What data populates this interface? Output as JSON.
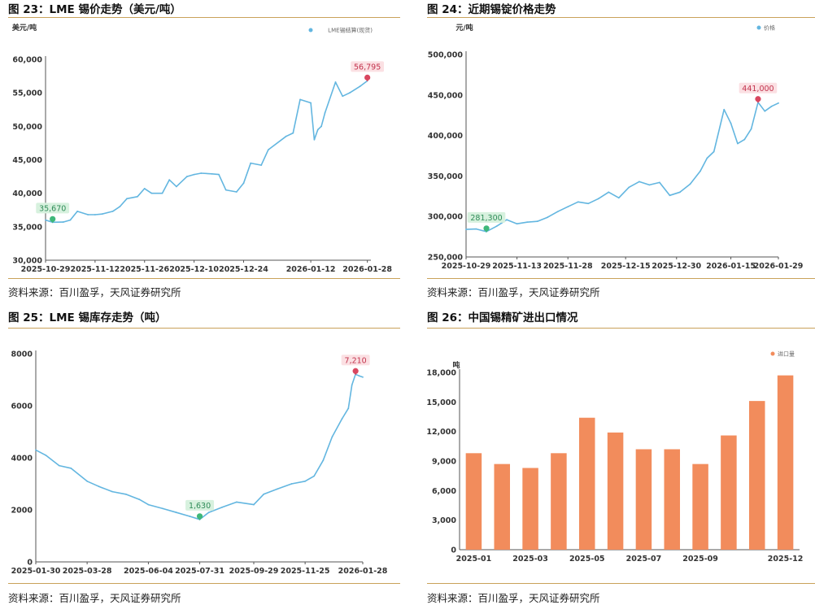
{
  "panels": [
    {
      "id": "p23",
      "title": "图 23：LME 锡价走势（美元/吨）",
      "source": "资料来源：百川盈孚，天风证券研究所",
      "chart_data": {
        "type": "line",
        "unit": "美元/吨",
        "legend": [
          "LME锡结算(现货)"
        ],
        "legend_position": "top-right",
        "color": "#63b6e0",
        "ylim": [
          30000,
          60000
        ],
        "yticks": [
          30000,
          35000,
          40000,
          45000,
          50000,
          55000,
          60000
        ],
        "ytick_labels": [
          "30,000",
          "35,000",
          "40,000",
          "45,000",
          "50,000",
          "55,000",
          "60,000"
        ],
        "xlim": [
          "2025-10-29",
          "2026-01-29"
        ],
        "xticks": [
          "2025-10-29",
          "2025-11-12",
          "2025-11-26",
          "2025-12-10",
          "2025-12-24",
          "2026-01-12",
          "2026-01-28"
        ],
        "x": [
          "2025-10-29",
          "2025-10-31",
          "2025-11-03",
          "2025-11-05",
          "2025-11-07",
          "2025-11-10",
          "2025-11-12",
          "2025-11-14",
          "2025-11-17",
          "2025-11-19",
          "2025-11-21",
          "2025-11-24",
          "2025-11-26",
          "2025-11-28",
          "2025-12-01",
          "2025-12-03",
          "2025-12-05",
          "2025-12-08",
          "2025-12-10",
          "2025-12-12",
          "2025-12-15",
          "2025-12-17",
          "2025-12-19",
          "2025-12-22",
          "2025-12-24",
          "2025-12-26",
          "2025-12-29",
          "2025-12-31",
          "2026-01-05",
          "2026-01-07",
          "2026-01-09",
          "2026-01-12",
          "2026-01-13",
          "2026-01-14",
          "2026-01-15",
          "2026-01-16",
          "2026-01-19",
          "2026-01-21",
          "2026-01-23",
          "2026-01-26",
          "2026-01-28"
        ],
        "values": [
          36000,
          35670,
          35700,
          36000,
          37300,
          36800,
          36800,
          36900,
          37300,
          38000,
          39200,
          39500,
          40700,
          40000,
          40000,
          42000,
          41000,
          42500,
          42800,
          43000,
          42900,
          42800,
          40500,
          40200,
          41500,
          44500,
          44200,
          46500,
          48500,
          49000,
          54000,
          53500,
          48000,
          49500,
          50000,
          52000,
          56600,
          54500,
          55000,
          56000,
          56795
        ],
        "min_label": {
          "x": "2025-10-31",
          "value": 35670,
          "text": "35,670"
        },
        "max_label": {
          "x": "2026-01-28",
          "value": 56795,
          "text": "56,795"
        }
      }
    },
    {
      "id": "p24",
      "title": "图 24：近期锡锭价格走势",
      "source": "资料来源：百川盈孚，天风证券研究所",
      "chart_data": {
        "type": "line",
        "unit": "元/吨",
        "legend": [
          "价格"
        ],
        "legend_position": "top-right",
        "color": "#63b6e0",
        "ylim": [
          250000,
          500000
        ],
        "yticks": [
          250000,
          300000,
          350000,
          400000,
          450000,
          500000
        ],
        "ytick_labels": [
          "250,000",
          "300,000",
          "350,000",
          "400,000",
          "450,000",
          "500,000"
        ],
        "xlim": [
          "2025-10-29",
          "2026-01-29"
        ],
        "xticks": [
          "2025-10-29",
          "2025-11-13",
          "2025-11-28",
          "2025-12-15",
          "2025-12-30",
          "2026-01-15",
          "2026-01-29"
        ],
        "x": [
          "2025-10-29",
          "2025-11-01",
          "2025-11-04",
          "2025-11-07",
          "2025-11-10",
          "2025-11-13",
          "2025-11-16",
          "2025-11-19",
          "2025-11-22",
          "2025-11-25",
          "2025-11-28",
          "2025-12-01",
          "2025-12-04",
          "2025-12-07",
          "2025-12-10",
          "2025-12-13",
          "2025-12-16",
          "2025-12-19",
          "2025-12-22",
          "2025-12-25",
          "2025-12-28",
          "2025-12-31",
          "2026-01-03",
          "2026-01-06",
          "2026-01-08",
          "2026-01-10",
          "2026-01-13",
          "2026-01-15",
          "2026-01-17",
          "2026-01-19",
          "2026-01-21",
          "2026-01-23",
          "2026-01-25",
          "2026-01-27",
          "2026-01-29"
        ],
        "values": [
          284000,
          284500,
          281300,
          288000,
          296000,
          291000,
          293000,
          294000,
          299000,
          306000,
          312000,
          318000,
          316000,
          322000,
          330000,
          323000,
          336000,
          343000,
          339000,
          342000,
          326000,
          330000,
          340000,
          356000,
          372000,
          380000,
          432000,
          415000,
          390000,
          395000,
          408000,
          441000,
          430000,
          436000,
          440000
        ],
        "min_label": {
          "x": "2025-11-04",
          "value": 281300,
          "text": "281,300"
        },
        "max_label": {
          "x": "2026-01-23",
          "value": 441000,
          "text": "441,000"
        }
      }
    },
    {
      "id": "p25",
      "title": "图 25：LME 锡库存走势（吨）",
      "source": "资料来源：百川盈孚，天风证券研究所",
      "chart_data": {
        "type": "line",
        "unit": "",
        "legend": [],
        "color": "#63b6e0",
        "ylim": [
          0,
          8000
        ],
        "yticks": [
          0,
          2000,
          4000,
          6000,
          8000
        ],
        "ytick_labels": [
          "0",
          "2000",
          "4000",
          "6000",
          "8000"
        ],
        "xlim": [
          "2025-01-30",
          "2026-01-28"
        ],
        "xticks": [
          "2025-01-30",
          "2025-03-28",
          "2025-06-04",
          "2025-07-31",
          "2025-09-29",
          "2025-11-25",
          "2026-01-28"
        ],
        "x": [
          "2025-01-30",
          "2025-02-10",
          "2025-02-25",
          "2025-03-10",
          "2025-03-28",
          "2025-04-10",
          "2025-04-25",
          "2025-05-10",
          "2025-05-25",
          "2025-06-04",
          "2025-06-20",
          "2025-07-05",
          "2025-07-20",
          "2025-07-31",
          "2025-08-10",
          "2025-08-25",
          "2025-09-10",
          "2025-09-29",
          "2025-10-10",
          "2025-10-25",
          "2025-11-10",
          "2025-11-25",
          "2025-12-05",
          "2025-12-15",
          "2025-12-25",
          "2026-01-05",
          "2026-01-12",
          "2026-01-16",
          "2026-01-20",
          "2026-01-24",
          "2026-01-28"
        ],
        "values": [
          4300,
          4100,
          3700,
          3600,
          3100,
          2900,
          2700,
          2600,
          2400,
          2200,
          2050,
          1900,
          1750,
          1630,
          1900,
          2100,
          2300,
          2200,
          2600,
          2800,
          3000,
          3100,
          3300,
          3900,
          4800,
          5500,
          5900,
          6800,
          7210,
          7150,
          7100
        ],
        "min_label": {
          "x": "2025-07-31",
          "value": 1630,
          "text": "1,630"
        },
        "max_label": {
          "x": "2026-01-20",
          "value": 7210,
          "text": "7,210"
        }
      }
    },
    {
      "id": "p26",
      "title": "图 26：中国锡精矿进出口情况",
      "source": "资料来源：百川盈孚，天风证券研究所",
      "chart_data": {
        "type": "bar",
        "unit": "吨",
        "legend": [
          "进口量"
        ],
        "legend_position": "top-right",
        "color": "#f28c5c",
        "ylim": [
          0,
          18000
        ],
        "yticks": [
          0,
          3000,
          6000,
          9000,
          12000,
          15000,
          18000
        ],
        "ytick_labels": [
          "0",
          "3,000",
          "6,000",
          "9,000",
          "12,000",
          "15,000",
          "18,000"
        ],
        "categories": [
          "2025-01",
          "2025-02",
          "2025-03",
          "2025-04",
          "2025-05",
          "2025-06",
          "2025-07",
          "2025-08",
          "2025-09",
          "2025-10",
          "2025-11",
          "2025-12"
        ],
        "category_labels": [
          "2025-01",
          "",
          "2025-03",
          "",
          "2025-05",
          "",
          "2025-07",
          "",
          "2025-09",
          "",
          "",
          "2025-12"
        ],
        "values": [
          9800,
          8700,
          8300,
          9800,
          13400,
          11900,
          10200,
          10200,
          8700,
          11600,
          15100,
          17700
        ]
      }
    }
  ]
}
